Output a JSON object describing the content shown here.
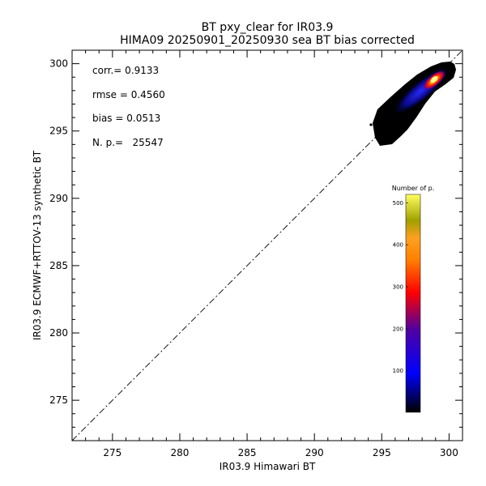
{
  "chart_data": {
    "type": "scatter",
    "title": "BT pxy_clear for IR03.9",
    "subtitle": "HIMA09 20250901_20250930 sea BT bias corrected",
    "xlabel": "IR03.9 Himawari BT",
    "ylabel": "IR03.9 ECMWF+RTTOV-13 synthetic BT",
    "xlim": [
      272,
      301
    ],
    "ylim": [
      272,
      301
    ],
    "xticks": [
      275,
      280,
      285,
      290,
      295,
      300
    ],
    "yticks": [
      275,
      280,
      285,
      290,
      295,
      300
    ],
    "reference_line": "1:1 dash-dot",
    "stats": [
      {
        "label": "corr.= 0.9133"
      },
      {
        "label": "rmse = 0.4560"
      },
      {
        "label": "bias = 0.0513"
      },
      {
        "label": "N. p.=   25547"
      }
    ],
    "density_cloud": {
      "x_range": [
        294.8,
        300.3
      ],
      "y_range": [
        294.0,
        300.3
      ],
      "peak": [
        298.7,
        298.8
      ]
    },
    "colorbar": {
      "title": "Number of p.",
      "ticks": [
        100,
        200,
        300,
        400,
        500
      ],
      "range": [
        1,
        520
      ],
      "colors": [
        "#000000",
        "#0000ff",
        "#5000a0",
        "#ff0000",
        "#ff8000",
        "#ffa020",
        "#a0a000",
        "#ffff60"
      ]
    }
  }
}
